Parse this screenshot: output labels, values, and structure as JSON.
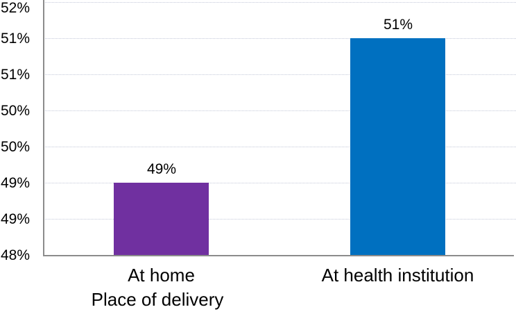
{
  "chart_data": {
    "type": "bar",
    "categories": [
      "At home",
      "At health institution"
    ],
    "values": [
      49,
      51
    ],
    "data_labels": [
      "49%",
      "51%"
    ],
    "title": "",
    "xlabel": "Place of delivery",
    "ylabel": "",
    "ylim": [
      48,
      51.5
    ],
    "ytick_step": 0.5,
    "yticks": [
      {
        "value": 48,
        "label": "48%"
      },
      {
        "value": 48.5,
        "label": "49%"
      },
      {
        "value": 49,
        "label": "49%"
      },
      {
        "value": 49.5,
        "label": "50%"
      },
      {
        "value": 50,
        "label": "50%"
      },
      {
        "value": 50.5,
        "label": "51%"
      },
      {
        "value": 51,
        "label": "51%"
      },
      {
        "value": 51.5,
        "label": "52%"
      }
    ],
    "grid": "dotted-horizontal",
    "legend": "none",
    "bar_colors": [
      "#7030A0",
      "#0070C0"
    ],
    "gridline_color": "#c3c8d9",
    "axis_line_color": "#8c8c8c",
    "text_color": "#000000",
    "background_color": "#ffffff"
  }
}
